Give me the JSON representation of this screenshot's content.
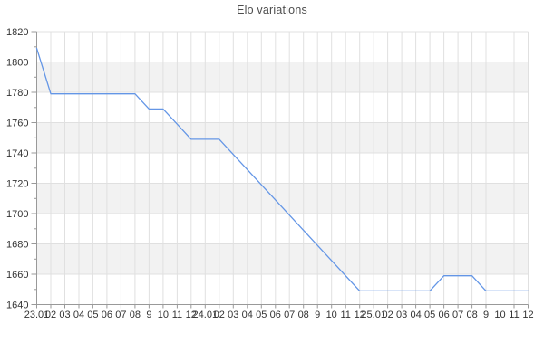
{
  "title": "Elo variations",
  "chart_data": {
    "type": "line",
    "title": "Elo variations",
    "xlabel": "",
    "ylabel": "",
    "ylim": [
      1640,
      1820
    ],
    "ytick_step": 20,
    "ytick_minor_step": 10,
    "grid": true,
    "legend_position": "none",
    "band_pattern": "alternating horizontal 20-point bands, white then light gray from top",
    "x_labels": [
      "23.01",
      "02",
      "03",
      "04",
      "05",
      "06",
      "07",
      "08",
      "9",
      "10",
      "11",
      "12",
      "24.01",
      "02",
      "03",
      "04",
      "05",
      "06",
      "07",
      "08",
      "9",
      "10",
      "11",
      "12",
      "25.01",
      "02",
      "03",
      "04",
      "05",
      "06",
      "07",
      "08",
      "9",
      "10",
      "11",
      "12"
    ],
    "y_tick_labels": [
      "1820",
      "1800",
      "1780",
      "1760",
      "1740",
      "1720",
      "1700",
      "1680",
      "1660",
      "1640"
    ],
    "series": [
      {
        "name": "Elo",
        "values": [
          1809,
          1779,
          1779,
          1779,
          1779,
          1779,
          1779,
          1779,
          1769,
          1769,
          1759,
          1749,
          1749,
          1749,
          1739,
          1729,
          1719,
          1709,
          1699,
          1689,
          1679,
          1669,
          1659,
          1649,
          1649,
          1649,
          1649,
          1649,
          1649,
          1659,
          1659,
          1659,
          1649,
          1649,
          1649,
          1649
        ]
      }
    ],
    "colors": {
      "line": "#6496e6",
      "grid": "#e0e0e0",
      "band": "#f2f2f2",
      "plot_background": "#ffffff",
      "axis": "#999999",
      "tick_label": "#333333",
      "title": "#4d4d4d"
    }
  }
}
